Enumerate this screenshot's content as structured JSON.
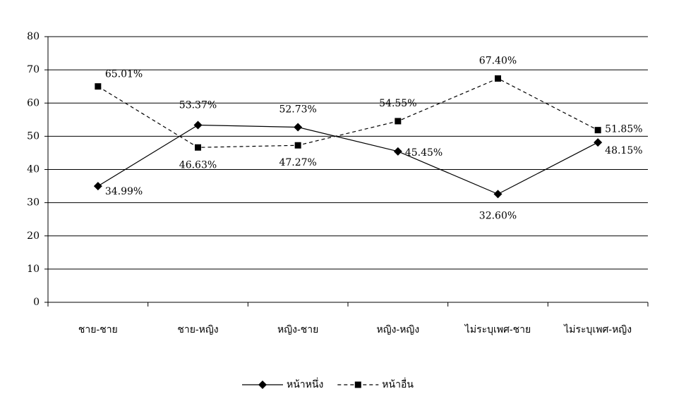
{
  "chart_data": {
    "type": "line",
    "categories": [
      "ชาย-ชาย",
      "ชาย-หญิง",
      "หญิง-ชาย",
      "หญิง-หญิง",
      "ไม่ระบุเพศ-ชาย",
      "ไม่ระบุเพศ-หญิง"
    ],
    "series": [
      {
        "name": "หน้าหนึ่ง",
        "color": "#000000",
        "line": "solid",
        "marker": "diamond",
        "values": [
          34.99,
          53.37,
          52.73,
          45.45,
          32.6,
          48.15
        ],
        "value_labels": [
          "34.99%",
          "53.37%",
          "52.73%",
          "45.45%",
          "32.60%",
          "48.15%"
        ]
      },
      {
        "name": "หน้าอื่น",
        "color": "#000000",
        "line": "dashed",
        "marker": "square",
        "values": [
          65.01,
          46.63,
          47.27,
          54.55,
          67.4,
          51.85
        ],
        "value_labels": [
          "65.01%",
          "46.63%",
          "47.27%",
          "54.55%",
          "67.40%",
          "51.85%"
        ]
      }
    ],
    "ylim": [
      0,
      80
    ],
    "yticks": [
      0,
      10,
      20,
      30,
      40,
      50,
      60,
      70,
      80
    ],
    "grid": true,
    "legend": "bottom"
  }
}
